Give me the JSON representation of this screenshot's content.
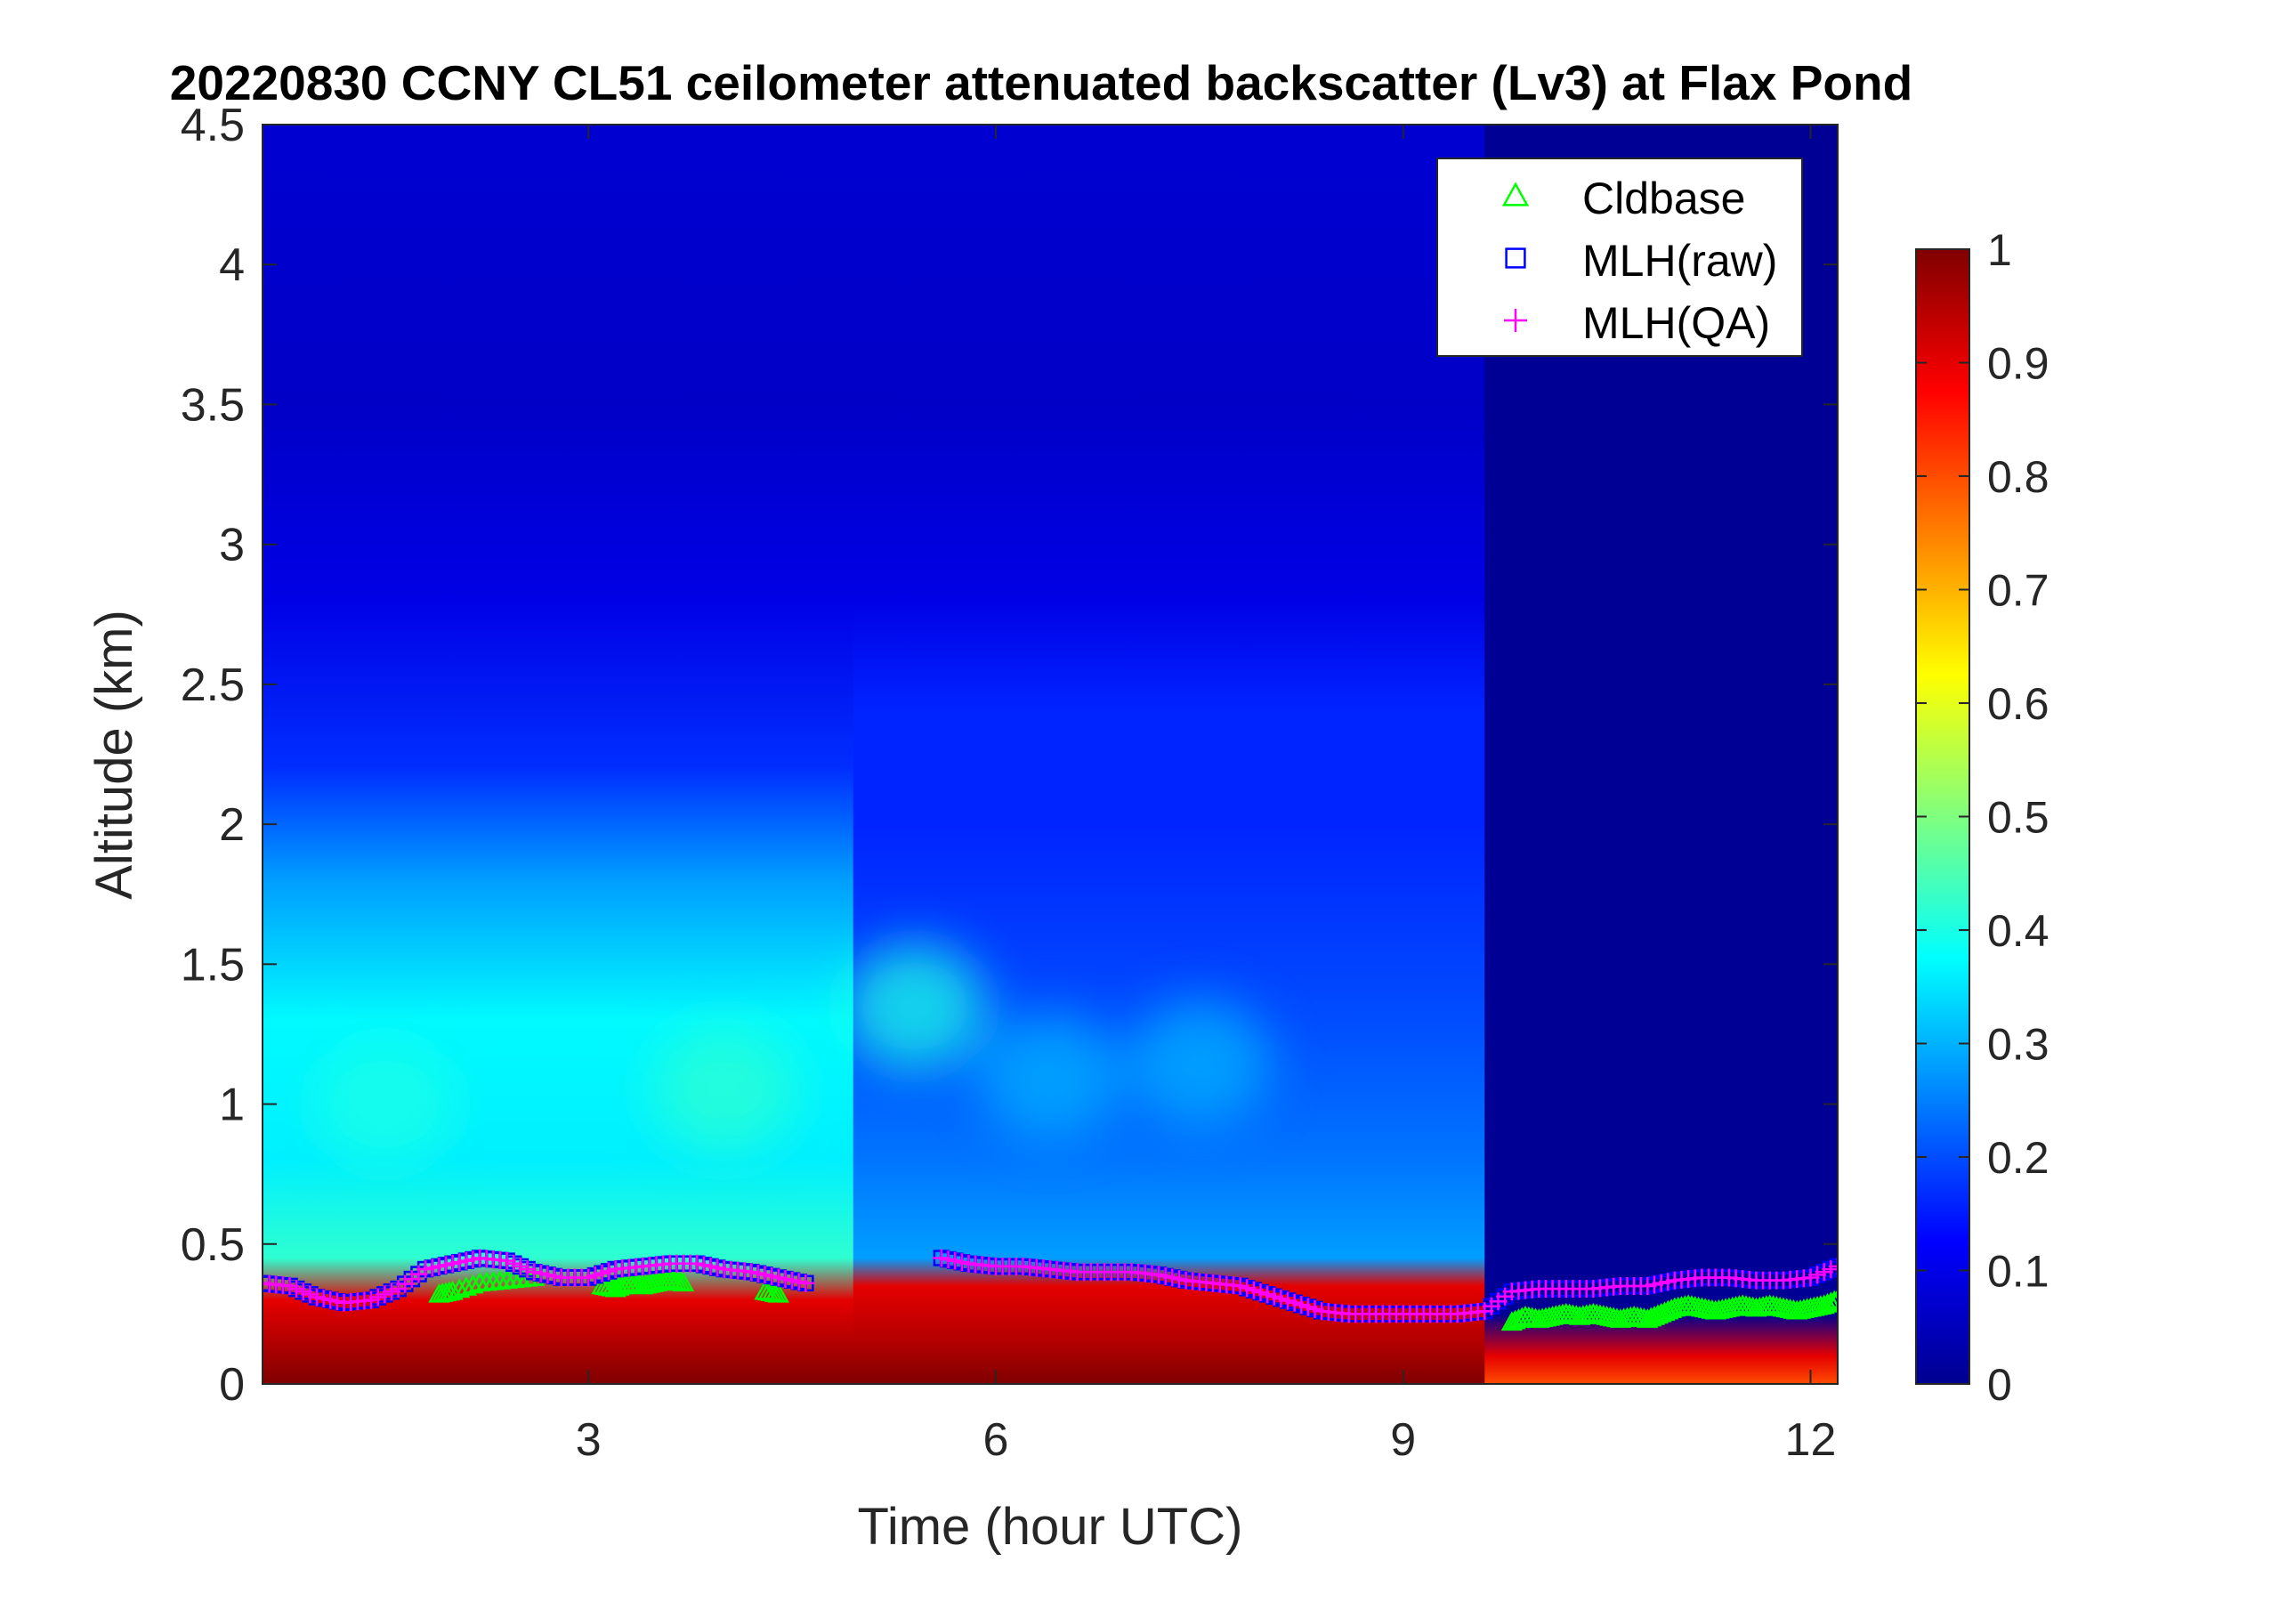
{
  "chart_data": {
    "type": "heatmap",
    "title": "20220830 CCNY CL51 ceilometer attenuated backscatter (Lv3) at Flax Pond",
    "xlabel": "Time (hour UTC)",
    "ylabel": "Altitude (km)",
    "xlim": [
      0.6,
      12.2
    ],
    "ylim": [
      0,
      4.5
    ],
    "x_ticks": [
      3,
      6,
      9,
      12
    ],
    "y_ticks": [
      0,
      0.5,
      1,
      1.5,
      2,
      2.5,
      3,
      3.5,
      4,
      4.5
    ],
    "y_tick_labels": [
      "0",
      "0.5",
      "1",
      "1.5",
      "2",
      "2.5",
      "3",
      "3.5",
      "4",
      "4.5"
    ],
    "colorbar": {
      "colormap": "jet",
      "range": [
        0,
        1
      ],
      "ticks": [
        0,
        0.1,
        0.2,
        0.3,
        0.4,
        0.5,
        0.6,
        0.7,
        0.8,
        0.9,
        1
      ],
      "tick_labels": [
        "0",
        "0.1",
        "0.2",
        "0.3",
        "0.4",
        "0.5",
        "0.6",
        "0.7",
        "0.8",
        "0.9",
        "1"
      ]
    },
    "heatmap_profiles": [
      {
        "t0": 0.6,
        "t1": 4.95,
        "zones": [
          [
            0,
            1.0
          ],
          [
            0.15,
            0.95
          ],
          [
            0.3,
            0.9
          ],
          [
            0.45,
            0.42
          ],
          [
            0.8,
            0.36
          ],
          [
            1.3,
            0.37
          ],
          [
            1.8,
            0.28
          ],
          [
            2.2,
            0.17
          ],
          [
            2.8,
            0.1
          ],
          [
            3.5,
            0.07
          ],
          [
            4.5,
            0.08
          ]
        ]
      },
      {
        "t0": 4.95,
        "t1": 9.6,
        "zones": [
          [
            0,
            1.0
          ],
          [
            0.15,
            0.95
          ],
          [
            0.35,
            0.9
          ],
          [
            0.45,
            0.28
          ],
          [
            0.8,
            0.24
          ],
          [
            1.3,
            0.2
          ],
          [
            2.0,
            0.16
          ],
          [
            2.4,
            0.16
          ],
          [
            2.8,
            0.1
          ],
          [
            3.5,
            0.07
          ],
          [
            4.5,
            0.08
          ]
        ]
      },
      {
        "t0": 9.6,
        "t1": 12.2,
        "zones": [
          [
            0,
            0.8
          ],
          [
            0.1,
            0.9
          ],
          [
            0.25,
            0.02
          ],
          [
            4.5,
            0.02
          ]
        ]
      }
    ],
    "blobs": [
      {
        "t": 5.4,
        "z": 1.35,
        "value": 0.4
      },
      {
        "t": 6.4,
        "z": 1.1,
        "value": 0.3
      },
      {
        "t": 7.5,
        "z": 1.15,
        "value": 0.3
      },
      {
        "t": 1.5,
        "z": 1.0,
        "value": 0.4
      },
      {
        "t": 4.0,
        "z": 1.05,
        "value": 0.42
      }
    ],
    "series": [
      {
        "name": "Cldbase",
        "marker": "triangle",
        "color": "#00ff00",
        "x": [
          1.9,
          2.0,
          2.2,
          2.4,
          2.6,
          3.1,
          3.2,
          3.3,
          3.4,
          3.5,
          3.6,
          3.7,
          4.3,
          4.4,
          9.8,
          9.9,
          10.0,
          10.1,
          10.2,
          10.3,
          10.4,
          10.5,
          10.6,
          10.7,
          10.8,
          10.9,
          11.0,
          11.1,
          11.2,
          11.3,
          11.4,
          11.5,
          11.6,
          11.7,
          11.8,
          11.9,
          12.0,
          12.1,
          12.2
        ],
        "y": [
          0.32,
          0.33,
          0.36,
          0.37,
          0.38,
          0.35,
          0.34,
          0.36,
          0.35,
          0.36,
          0.37,
          0.36,
          0.33,
          0.32,
          0.22,
          0.24,
          0.23,
          0.24,
          0.25,
          0.24,
          0.25,
          0.24,
          0.23,
          0.24,
          0.23,
          0.25,
          0.27,
          0.28,
          0.27,
          0.26,
          0.27,
          0.28,
          0.27,
          0.28,
          0.27,
          0.26,
          0.27,
          0.28,
          0.3
        ]
      },
      {
        "name": "MLH(raw)",
        "marker": "square",
        "color": "#0000ff",
        "x": [
          0.6,
          0.8,
          1.0,
          1.2,
          1.4,
          1.6,
          1.8,
          2.0,
          2.2,
          2.4,
          2.6,
          2.8,
          3.0,
          3.2,
          3.4,
          3.6,
          3.8,
          4.0,
          4.2,
          4.4,
          4.6,
          5.6,
          5.8,
          6.0,
          6.2,
          6.4,
          6.6,
          6.8,
          7.0,
          7.2,
          7.4,
          7.6,
          7.8,
          8.0,
          8.2,
          8.4,
          8.6,
          8.8,
          9.0,
          9.2,
          9.4,
          9.6,
          9.8,
          10.0,
          10.2,
          10.4,
          10.6,
          10.8,
          11.0,
          11.2,
          11.4,
          11.6,
          11.8,
          12.0,
          12.2
        ],
        "y": [
          0.36,
          0.35,
          0.31,
          0.29,
          0.3,
          0.34,
          0.41,
          0.43,
          0.45,
          0.44,
          0.4,
          0.38,
          0.38,
          0.41,
          0.42,
          0.43,
          0.43,
          0.41,
          0.4,
          0.38,
          0.36,
          0.45,
          0.43,
          0.42,
          0.42,
          0.41,
          0.4,
          0.4,
          0.4,
          0.39,
          0.37,
          0.36,
          0.35,
          0.32,
          0.29,
          0.26,
          0.25,
          0.25,
          0.25,
          0.25,
          0.25,
          0.26,
          0.33,
          0.34,
          0.34,
          0.34,
          0.35,
          0.35,
          0.37,
          0.38,
          0.38,
          0.37,
          0.37,
          0.38,
          0.42
        ]
      },
      {
        "name": "MLH(QA)",
        "marker": "plus",
        "color": "#ff00ff",
        "x": [
          0.6,
          0.8,
          1.0,
          1.2,
          1.4,
          1.6,
          1.8,
          2.0,
          2.2,
          2.4,
          2.6,
          2.8,
          3.0,
          3.2,
          3.4,
          3.6,
          3.8,
          4.0,
          4.2,
          4.4,
          4.6,
          5.6,
          5.8,
          6.0,
          6.2,
          6.4,
          6.6,
          6.8,
          7.0,
          7.2,
          7.4,
          7.6,
          7.8,
          8.0,
          8.2,
          8.4,
          8.6,
          8.8,
          9.0,
          9.2,
          9.4,
          9.6,
          9.8,
          10.0,
          10.2,
          10.4,
          10.6,
          10.8,
          11.0,
          11.2,
          11.4,
          11.6,
          11.8,
          12.0,
          12.2
        ],
        "y": [
          0.36,
          0.35,
          0.31,
          0.29,
          0.3,
          0.34,
          0.41,
          0.43,
          0.45,
          0.44,
          0.4,
          0.38,
          0.38,
          0.41,
          0.42,
          0.43,
          0.43,
          0.41,
          0.4,
          0.38,
          0.36,
          0.45,
          0.43,
          0.42,
          0.42,
          0.41,
          0.4,
          0.4,
          0.4,
          0.39,
          0.37,
          0.36,
          0.35,
          0.32,
          0.29,
          0.26,
          0.25,
          0.25,
          0.25,
          0.25,
          0.25,
          0.26,
          0.33,
          0.34,
          0.34,
          0.34,
          0.35,
          0.35,
          0.37,
          0.38,
          0.38,
          0.37,
          0.37,
          0.38,
          0.42
        ]
      }
    ],
    "legend": {
      "placement": "top-right",
      "entries": [
        "Cldbase",
        "MLH(raw)",
        "MLH(QA)"
      ]
    },
    "grid": false
  }
}
